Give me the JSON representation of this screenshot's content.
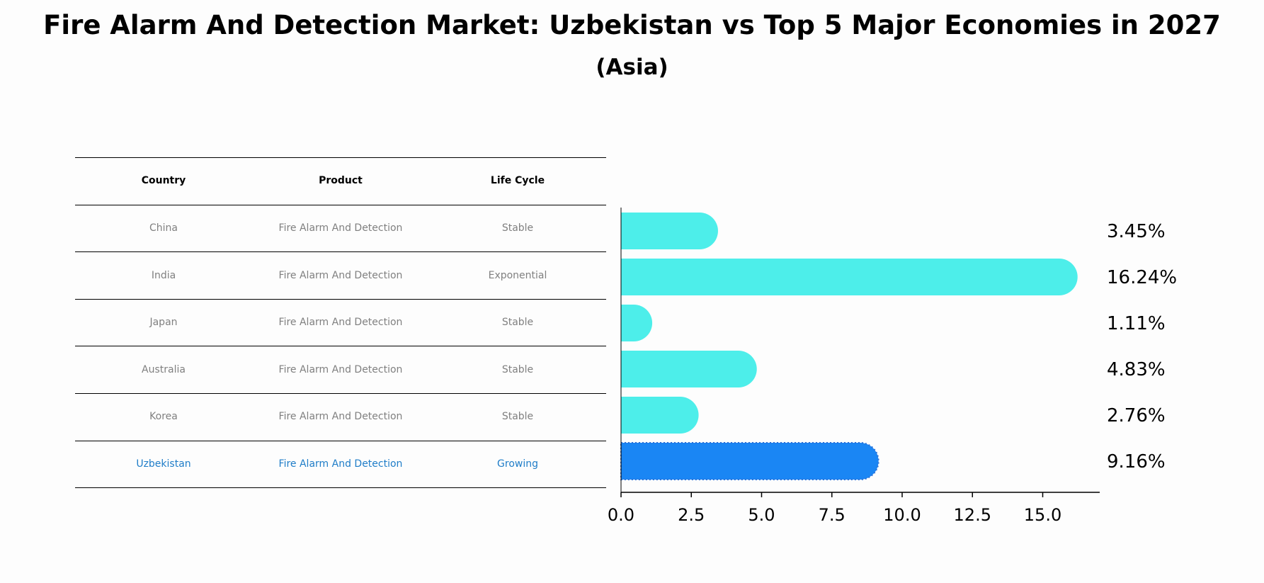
{
  "title": "Fire Alarm And Detection Market: Uzbekistan vs Top 5 Major Economies in 2027",
  "subtitle": "(Asia)",
  "table": {
    "headers": [
      "Country",
      "Product",
      "Life Cycle"
    ],
    "rows": [
      [
        "China",
        "Fire Alarm And Detection",
        "Stable"
      ],
      [
        "India",
        "Fire Alarm And Detection",
        "Exponential"
      ],
      [
        "Japan",
        "Fire Alarm And Detection",
        "Stable"
      ],
      [
        "Australia",
        "Fire Alarm And Detection",
        "Stable"
      ],
      [
        "Korea",
        "Fire Alarm And Detection",
        "Stable"
      ],
      [
        "Uzbekistan",
        "Fire Alarm And Detection",
        "Growing"
      ]
    ],
    "highlight_row": 5,
    "highlight_color": "#1f7dc8"
  },
  "chart_data": {
    "type": "bar",
    "orientation": "horizontal",
    "categories": [
      "China",
      "India",
      "Japan",
      "Australia",
      "Korea",
      "Uzbekistan"
    ],
    "values": [
      3.45,
      16.24,
      1.11,
      4.83,
      2.76,
      9.16
    ],
    "value_labels": [
      "3.45%",
      "16.24%",
      "1.11%",
      "4.83%",
      "2.76%",
      "9.16%"
    ],
    "xlim": [
      0,
      17
    ],
    "xticks": [
      0.0,
      2.5,
      5.0,
      7.5,
      10.0,
      12.5,
      15.0
    ],
    "xtick_labels": [
      "0.0",
      "2.5",
      "5.0",
      "7.5",
      "10.0",
      "12.5",
      "15.0"
    ],
    "bar_color": "#4deeea",
    "highlight_color": "#1a86f4",
    "highlight_index": 5,
    "grid": false
  }
}
